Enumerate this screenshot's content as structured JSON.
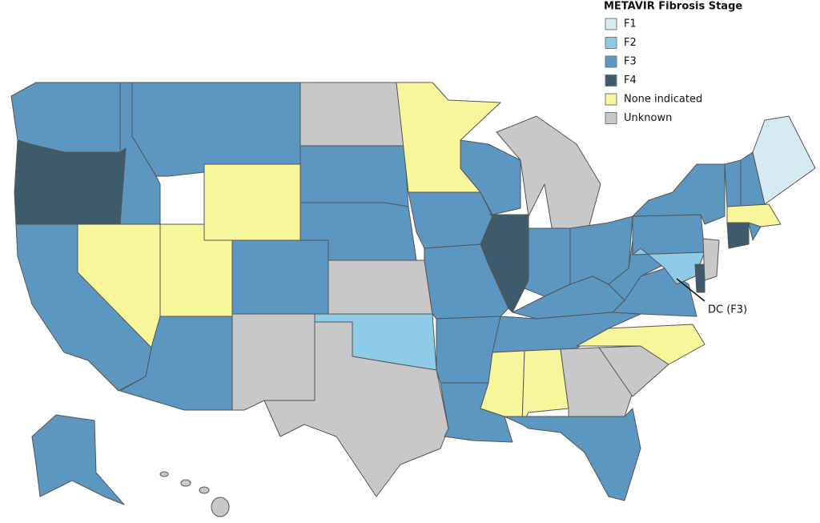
{
  "legend": {
    "title": "METAVIR Fibrosis Stage",
    "items": [
      {
        "label": "F1",
        "color": "#d6eaf2"
      },
      {
        "label": "F2",
        "color": "#8dcbe6"
      },
      {
        "label": "F3",
        "color": "#5b97c0"
      },
      {
        "label": "F4",
        "color": "#3e5b6b"
      },
      {
        "label": "None indicated",
        "color": "#f7f69a"
      },
      {
        "label": "Unknown",
        "color": "#c8c8c8"
      }
    ]
  },
  "annotation": "DC (F3)"
}
